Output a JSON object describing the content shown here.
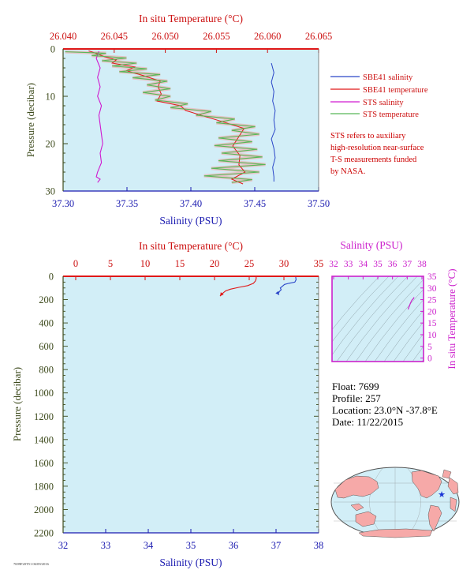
{
  "colors": {
    "salinity_axis": "#1b1bb0",
    "temperature_axis": "#cc1111",
    "pressure_axis": "#3d4a1c",
    "ts_axis": "#cc22cc",
    "plot_bg": "#d2eef7",
    "sbe41_salinity": "#2b46c8",
    "sbe41_temperature": "#e01818",
    "sts_salinity": "#d01ad0",
    "sts_temperature": "#58b858",
    "sts_temperature_fill": "#f4a0a0",
    "note": "#cc0000"
  },
  "chart_data": [
    {
      "type": "line",
      "id": "upper",
      "top_axis": {
        "label": "In situ Temperature (°C)",
        "range": [
          26.04,
          26.065
        ],
        "ticks": [
          "26.040",
          "26.045",
          "26.050",
          "26.055",
          "26.060",
          "26.065"
        ]
      },
      "bottom_axis": {
        "label": "Salinity (PSU)",
        "range": [
          37.3,
          37.5
        ],
        "ticks": [
          "37.30",
          "37.35",
          "37.40",
          "37.45",
          "37.50"
        ]
      },
      "left_axis": {
        "label": "Pressure (decibar)",
        "range": [
          0,
          30
        ],
        "reversed": true,
        "ticks": [
          "0",
          "10",
          "20",
          "30"
        ]
      },
      "legend": {
        "placement": "right",
        "items": [
          {
            "label": "SBE41 salinity",
            "color": "#2b46c8"
          },
          {
            "label": "SBE41 temperature",
            "color": "#e01818"
          },
          {
            "label": "STS salinity",
            "color": "#d01ad0"
          },
          {
            "label": "STS temperature",
            "color": "#58b858"
          }
        ]
      },
      "note": [
        "STS refers to auxiliary",
        "high-resolution near-surface",
        "T-S measurements funded",
        "by NASA."
      ],
      "series": [
        {
          "name": "SBE41 salinity",
          "axis": "salinity",
          "points": [
            [
              37.463,
              3
            ],
            [
              37.465,
              5
            ],
            [
              37.463,
              7
            ],
            [
              37.465,
              9
            ],
            [
              37.464,
              11
            ],
            [
              37.466,
              13
            ],
            [
              37.465,
              15
            ],
            [
              37.466,
              17
            ],
            [
              37.463,
              19
            ],
            [
              37.465,
              21
            ],
            [
              37.466,
              23
            ],
            [
              37.464,
              25
            ],
            [
              37.465,
              27
            ],
            [
              37.465,
              28
            ]
          ]
        },
        {
          "name": "SBE41 temperature",
          "axis": "temperature",
          "points": [
            [
              26.0425,
              0.4
            ],
            [
              26.0433,
              1.0
            ],
            [
              26.044,
              1.6
            ],
            [
              26.0452,
              2.3
            ],
            [
              26.0448,
              3.0
            ],
            [
              26.047,
              3.8
            ],
            [
              26.0462,
              4.6
            ],
            [
              26.0478,
              5.6
            ],
            [
              26.0495,
              6.8
            ],
            [
              26.0493,
              8.0
            ],
            [
              26.0496,
              9.5
            ],
            [
              26.0492,
              11.0
            ],
            [
              26.0515,
              12.0
            ],
            [
              26.052,
              13.0
            ],
            [
              26.0538,
              14.2
            ],
            [
              26.0555,
              15.3
            ],
            [
              26.0577,
              16.8
            ],
            [
              26.0572,
              18.5
            ],
            [
              26.0566,
              20.5
            ],
            [
              26.0573,
              22.5
            ],
            [
              26.0572,
              24.5
            ],
            [
              26.0578,
              26.0
            ],
            [
              26.0565,
              27.5
            ],
            [
              26.0576,
              28.5
            ]
          ]
        },
        {
          "name": "STS salinity",
          "axis": "salinity",
          "points": [
            [
              37.328,
              0.5
            ],
            [
              37.326,
              2
            ],
            [
              37.329,
              4
            ],
            [
              37.327,
              6
            ],
            [
              37.329,
              8
            ],
            [
              37.327,
              10
            ],
            [
              37.33,
              12
            ],
            [
              37.328,
              14
            ],
            [
              37.329,
              16
            ],
            [
              37.33,
              18
            ],
            [
              37.331,
              20
            ],
            [
              37.329,
              22
            ],
            [
              37.33,
              24
            ],
            [
              37.327,
              26
            ],
            [
              37.326,
              27
            ],
            [
              37.329,
              27.5
            ],
            [
              37.327,
              28.2
            ]
          ]
        },
        {
          "name": "STS temperature",
          "axis": "temperature",
          "points": [
            [
              26.0402,
              0.6
            ],
            [
              26.0442,
              0.9
            ],
            [
              26.0428,
              1.4
            ],
            [
              26.0462,
              1.9
            ],
            [
              26.0438,
              2.5
            ],
            [
              26.0472,
              3.0
            ],
            [
              26.0448,
              3.6
            ],
            [
              26.0482,
              4.2
            ],
            [
              26.0455,
              4.8
            ],
            [
              26.0495,
              5.4
            ],
            [
              26.0468,
              6.1
            ],
            [
              26.0502,
              6.8
            ],
            [
              26.0482,
              7.6
            ],
            [
              26.0505,
              8.4
            ],
            [
              26.0478,
              9.2
            ],
            [
              26.0505,
              10.0
            ],
            [
              26.049,
              10.8
            ],
            [
              26.0522,
              11.6
            ],
            [
              26.0505,
              12.4
            ],
            [
              26.0545,
              13.2
            ],
            [
              26.053,
              14.0
            ],
            [
              26.0568,
              14.8
            ],
            [
              26.055,
              15.6
            ],
            [
              26.0588,
              16.4
            ],
            [
              26.0565,
              17.2
            ],
            [
              26.0592,
              18.0
            ],
            [
              26.0552,
              18.8
            ],
            [
              26.0585,
              19.6
            ],
            [
              26.0548,
              20.4
            ],
            [
              26.059,
              21.2
            ],
            [
              26.0555,
              22.0
            ],
            [
              26.0595,
              22.8
            ],
            [
              26.0552,
              23.6
            ],
            [
              26.0598,
              24.4
            ],
            [
              26.0545,
              25.2
            ],
            [
              26.0592,
              26.0
            ],
            [
              26.0538,
              26.8
            ],
            [
              26.0585,
              27.6
            ],
            [
              26.0565,
              28.2
            ]
          ]
        }
      ]
    },
    {
      "type": "line",
      "id": "lower",
      "top_axis": {
        "label": "In situ Temperature (°C)",
        "range": [
          -3,
          35
        ],
        "ticks": [
          "0",
          "5",
          "10",
          "15",
          "20",
          "25",
          "30",
          "35"
        ]
      },
      "bottom_axis": {
        "label": "Salinity (PSU)",
        "range": [
          32,
          38
        ],
        "ticks": [
          "32",
          "33",
          "34",
          "35",
          "36",
          "37",
          "38"
        ]
      },
      "left_axis": {
        "label": "Pressure (decibar)",
        "range": [
          0,
          2200
        ],
        "reversed": true,
        "ticks": [
          "0",
          "200",
          "400",
          "600",
          "800",
          "1000",
          "1200",
          "1400",
          "1600",
          "1800",
          "2000",
          "2200"
        ]
      },
      "series": [
        {
          "name": "Temperature profile",
          "axis": "temperature",
          "points": [
            [
              26.0,
              0
            ],
            [
              26.0,
              20
            ],
            [
              25.9,
              40
            ],
            [
              25.6,
              60
            ],
            [
              24.8,
              80
            ],
            [
              23.5,
              95
            ],
            [
              22.3,
              110
            ],
            [
              21.6,
              125
            ],
            [
              21.3,
              140
            ],
            [
              21.0,
              155
            ],
            [
              20.8,
              170
            ]
          ]
        },
        {
          "name": "Salinity profile",
          "axis": "salinity",
          "points": [
            [
              37.46,
              0
            ],
            [
              37.47,
              30
            ],
            [
              37.44,
              50
            ],
            [
              37.3,
              60
            ],
            [
              37.2,
              70
            ],
            [
              37.15,
              85
            ],
            [
              37.1,
              100
            ],
            [
              37.12,
              115
            ],
            [
              37.08,
              130
            ],
            [
              37.05,
              150
            ],
            [
              37.07,
              160
            ]
          ]
        }
      ]
    },
    {
      "type": "scatter",
      "id": "ts-diagram",
      "top_axis": {
        "label": "Salinity (PSU)",
        "range": [
          32,
          38
        ],
        "ticks": [
          "32",
          "33",
          "34",
          "35",
          "36",
          "37",
          "38"
        ]
      },
      "right_axis": {
        "label": "In situ Temperature (°C)",
        "range": [
          -3,
          35
        ],
        "ticks": [
          "0",
          "5",
          "10",
          "15",
          "20",
          "25",
          "30",
          "35"
        ]
      },
      "series": [
        {
          "name": "T-S",
          "points": [
            [
              37.06,
              20.8
            ],
            [
              37.1,
              21.6
            ],
            [
              37.15,
              22.3
            ],
            [
              37.22,
              23.5
            ],
            [
              37.32,
              24.8
            ],
            [
              37.44,
              25.6
            ],
            [
              37.46,
              26.0
            ]
          ]
        }
      ]
    }
  ],
  "float_info": {
    "float": "Float:  7699",
    "profile": "Profile:  257",
    "location": "Location:  23.0°N  -37.8°E",
    "date": "Date:  11/22/2015"
  },
  "map": {
    "marker": "★",
    "marker_color": "#1a35d6",
    "land_color": "#f6a9a8",
    "ocean_color": "#d2eef7"
  },
  "footer_code": "7699F20T51 06/09/2016"
}
